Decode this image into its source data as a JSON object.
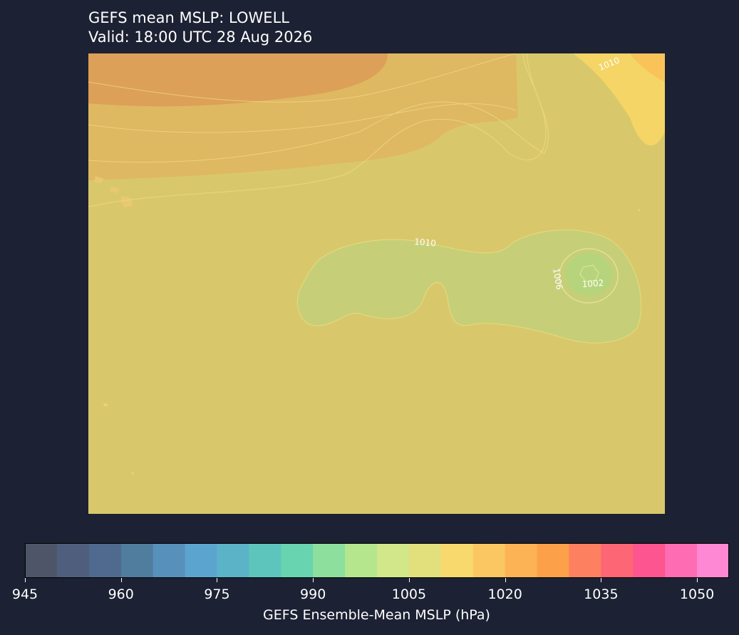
{
  "title": {
    "line1": "GEFS mean MSLP: LOWELL",
    "line2": "Valid: 18:00 UTC 28 Aug 2026"
  },
  "map": {
    "contour_labels": [
      "1010",
      "1010",
      "1006",
      "1002"
    ]
  },
  "colorbar": {
    "label": "GEFS Ensemble-Mean MSLP (hPa)",
    "tick_labels": [
      "945",
      "960",
      "975",
      "990",
      "1005",
      "1020",
      "1035",
      "1050"
    ],
    "range": [
      945,
      1055
    ],
    "bin_size": 5,
    "colors": [
      "#4e5568",
      "#4f5e7c",
      "#4f6a8e",
      "#507c9e",
      "#5690bb",
      "#5ca4d0",
      "#5bb3c8",
      "#5ec5bc",
      "#68d4b0",
      "#8ddf9e",
      "#b5e68e",
      "#d2e68a",
      "#e2e07c",
      "#f8d96e",
      "#fac763",
      "#fbb356",
      "#fca04a",
      "#fd8160",
      "#fd6674",
      "#fd5590",
      "#fe6cb3",
      "#fe88d4"
    ]
  },
  "colors": {
    "background": "#1c2133",
    "ocean_fill": "#d9c86b",
    "low_fill": "#c6cf78",
    "low_core": "#b6d47c",
    "high_fill": "#dda65a"
  }
}
